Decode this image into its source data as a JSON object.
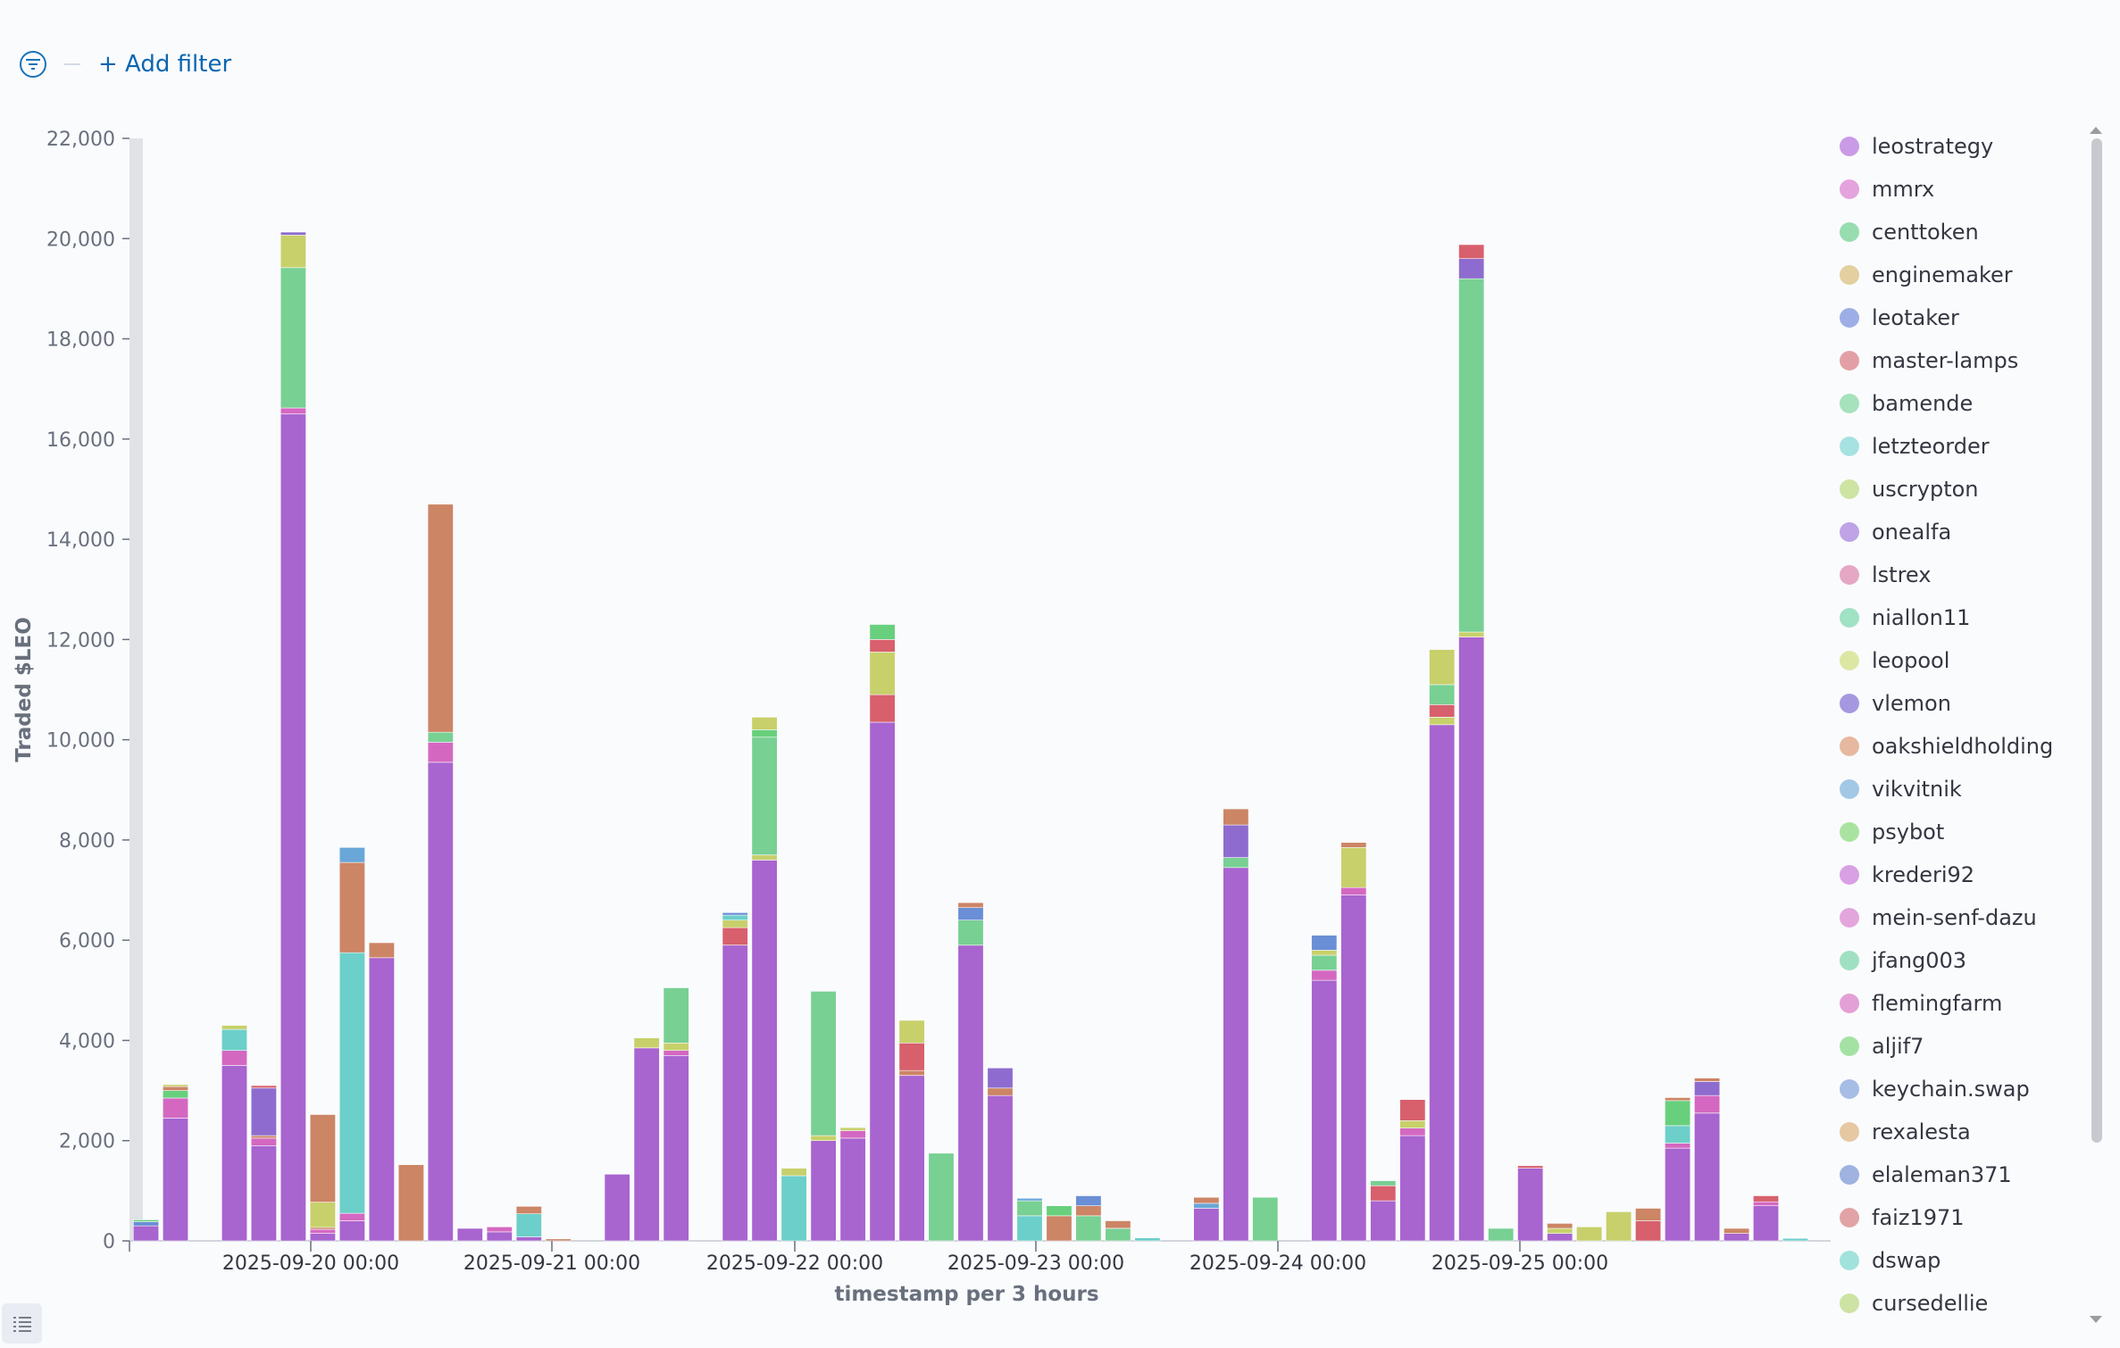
{
  "toolbar": {
    "add_filter_label": "+ Add filter"
  },
  "icons": {
    "filter": "filter-icon",
    "legend_toggle": "list-icon"
  },
  "colors": {
    "purple": "#a864cf",
    "pink": "#d468c1",
    "teal": "#6ccfc9",
    "green": "#78d093",
    "olive": "#c7d06a",
    "brown": "#cc8565",
    "red": "#d7606c",
    "blue": "#6a8fd6",
    "sky": "#69a7d8",
    "violet": "#8e6ccf",
    "grass": "#68d07c",
    "grid": "#d3dae6",
    "axis": "#69707d"
  },
  "chart_data": {
    "type": "bar",
    "stacked": true,
    "ylabel": "Traded $LEO",
    "xlabel": "timestamp per 3 hours",
    "ylim": [
      0,
      22000
    ],
    "y_ticks": [
      "0",
      "2,000",
      "4,000",
      "6,000",
      "8,000",
      "10,000",
      "12,000",
      "14,000",
      "16,000",
      "18,000",
      "20,000",
      "22,000"
    ],
    "x_tick_labels": [
      "2025-09-20 00:00",
      "2025-09-21 00:00",
      "2025-09-22 00:00",
      "2025-09-23 00:00",
      "2025-09-24 00:00",
      "2025-09-25 00:00"
    ],
    "legend_position": "right",
    "legend": [
      {
        "name": "leostrategy",
        "color": "#c99be6"
      },
      {
        "name": "mmrx",
        "color": "#e4a3dc"
      },
      {
        "name": "centtoken",
        "color": "#97ddb0"
      },
      {
        "name": "enginemaker",
        "color": "#e3cf9f"
      },
      {
        "name": "leotaker",
        "color": "#9daee6"
      },
      {
        "name": "master-lamps",
        "color": "#e2a0a6"
      },
      {
        "name": "bamende",
        "color": "#a6e2bb"
      },
      {
        "name": "letzteorder",
        "color": "#a6e2e1"
      },
      {
        "name": "uscrypton",
        "color": "#cde4a3"
      },
      {
        "name": "onealfa",
        "color": "#bfa3e6"
      },
      {
        "name": "lstrex",
        "color": "#e5a7c4"
      },
      {
        "name": "niallon11",
        "color": "#a0e2c4"
      },
      {
        "name": "leopool",
        "color": "#dde7a4"
      },
      {
        "name": "vlemon",
        "color": "#a598e0"
      },
      {
        "name": "oakshieldholding",
        "color": "#e6b8a0"
      },
      {
        "name": "vikvitnik",
        "color": "#a3c8e6"
      },
      {
        "name": "psybot",
        "color": "#a9e3a1"
      },
      {
        "name": "krederi92",
        "color": "#d9a0e3"
      },
      {
        "name": "mein-senf-dazu",
        "color": "#e3a6dc"
      },
      {
        "name": "jfang003",
        "color": "#a0e0c2"
      },
      {
        "name": "flemingfarm",
        "color": "#e3a0d6"
      },
      {
        "name": "aljif7",
        "color": "#a4e2a4"
      },
      {
        "name": "keychain.swap",
        "color": "#a6bde6"
      },
      {
        "name": "rexalesta",
        "color": "#e6c8a3"
      },
      {
        "name": "elaleman371",
        "color": "#9fb2e0"
      },
      {
        "name": "faiz1971",
        "color": "#e2a3a6"
      },
      {
        "name": "dswap",
        "color": "#a2e2dc"
      },
      {
        "name": "cursedellie",
        "color": "#cde3a3"
      }
    ],
    "bars": [
      {
        "segments": [
          [
            "purple",
            300
          ],
          [
            "blue",
            80
          ],
          [
            "grass",
            40
          ]
        ]
      },
      {
        "segments": [
          [
            "purple",
            2450
          ],
          [
            "pink",
            400
          ],
          [
            "grass",
            150
          ],
          [
            "brown",
            80
          ],
          [
            "olive",
            40
          ]
        ]
      },
      {
        "segments": []
      },
      {
        "segments": [
          [
            "purple",
            3500
          ],
          [
            "pink",
            300
          ],
          [
            "teal",
            420
          ],
          [
            "olive",
            80
          ]
        ]
      },
      {
        "segments": [
          [
            "purple",
            1900
          ],
          [
            "pink",
            150
          ],
          [
            "brown",
            50
          ],
          [
            "violet",
            950
          ],
          [
            "red",
            50
          ]
        ]
      },
      {
        "segments": [
          [
            "purple",
            16500
          ],
          [
            "pink",
            120
          ],
          [
            "green",
            2800
          ],
          [
            "olive",
            650
          ],
          [
            "violet",
            60
          ]
        ]
      },
      {
        "segments": [
          [
            "purple",
            150
          ],
          [
            "pink",
            80
          ],
          [
            "brown",
            40
          ],
          [
            "olive",
            500
          ],
          [
            "brown",
            1750
          ]
        ]
      },
      {
        "segments": [
          [
            "purple",
            400
          ],
          [
            "pink",
            150
          ],
          [
            "teal",
            5200
          ],
          [
            "brown",
            1800
          ],
          [
            "sky",
            300
          ]
        ]
      },
      {
        "segments": [
          [
            "purple",
            5650
          ],
          [
            "brown",
            300
          ]
        ]
      },
      {
        "segments": [
          [
            "brown",
            1520
          ]
        ]
      },
      {
        "segments": [
          [
            "purple",
            9550
          ],
          [
            "pink",
            400
          ],
          [
            "green",
            200
          ],
          [
            "brown",
            4550
          ]
        ]
      },
      {
        "segments": [
          [
            "purple",
            250
          ]
        ]
      },
      {
        "segments": [
          [
            "purple",
            180
          ],
          [
            "pink",
            100
          ]
        ]
      },
      {
        "segments": [
          [
            "purple",
            80
          ],
          [
            "teal",
            460
          ],
          [
            "brown",
            150
          ]
        ]
      },
      {
        "segments": [
          [
            "brown",
            40
          ]
        ]
      },
      {
        "segments": []
      },
      {
        "segments": [
          [
            "purple",
            1330
          ]
        ]
      },
      {
        "segments": [
          [
            "purple",
            3850
          ],
          [
            "olive",
            200
          ]
        ]
      },
      {
        "segments": [
          [
            "purple",
            3700
          ],
          [
            "pink",
            100
          ],
          [
            "olive",
            150
          ],
          [
            "green",
            1100
          ]
        ]
      },
      {
        "segments": []
      },
      {
        "segments": [
          [
            "purple",
            5900
          ],
          [
            "red",
            350
          ],
          [
            "olive",
            150
          ],
          [
            "teal",
            100
          ],
          [
            "blue",
            50
          ]
        ]
      },
      {
        "segments": [
          [
            "purple",
            7600
          ],
          [
            "olive",
            100
          ],
          [
            "green",
            2350
          ],
          [
            "grass",
            150
          ],
          [
            "olive",
            250
          ]
        ]
      },
      {
        "segments": [
          [
            "teal",
            1300
          ],
          [
            "olive",
            150
          ]
        ]
      },
      {
        "segments": [
          [
            "purple",
            2000
          ],
          [
            "olive",
            100
          ],
          [
            "green",
            2880
          ]
        ]
      },
      {
        "segments": [
          [
            "purple",
            2050
          ],
          [
            "pink",
            150
          ],
          [
            "olive",
            60
          ]
        ]
      },
      {
        "segments": [
          [
            "purple",
            10350
          ],
          [
            "red",
            550
          ],
          [
            "olive",
            850
          ],
          [
            "red",
            250
          ],
          [
            "grass",
            300
          ]
        ]
      },
      {
        "segments": [
          [
            "purple",
            3300
          ],
          [
            "brown",
            100
          ],
          [
            "red",
            550
          ],
          [
            "olive",
            450
          ]
        ]
      },
      {
        "segments": [
          [
            "green",
            1750
          ]
        ]
      },
      {
        "segments": [
          [
            "purple",
            5900
          ],
          [
            "green",
            500
          ],
          [
            "blue",
            250
          ],
          [
            "brown",
            100
          ]
        ]
      },
      {
        "segments": [
          [
            "purple",
            2900
          ],
          [
            "brown",
            150
          ],
          [
            "violet",
            400
          ]
        ]
      },
      {
        "segments": [
          [
            "teal",
            500
          ],
          [
            "green",
            300
          ],
          [
            "sky",
            50
          ]
        ]
      },
      {
        "segments": [
          [
            "brown",
            500
          ],
          [
            "grass",
            200
          ]
        ]
      },
      {
        "segments": [
          [
            "green",
            500
          ],
          [
            "brown",
            200
          ],
          [
            "blue",
            200
          ]
        ]
      },
      {
        "segments": [
          [
            "green",
            250
          ],
          [
            "brown",
            150
          ]
        ]
      },
      {
        "segments": [
          [
            "teal",
            60
          ]
        ]
      },
      {
        "segments": []
      },
      {
        "segments": [
          [
            "purple",
            650
          ],
          [
            "sky",
            100
          ],
          [
            "brown",
            120
          ]
        ]
      },
      {
        "segments": [
          [
            "purple",
            7450
          ],
          [
            "green",
            200
          ],
          [
            "violet",
            650
          ],
          [
            "brown",
            320
          ]
        ]
      },
      {
        "segments": [
          [
            "green",
            870
          ]
        ]
      },
      {
        "segments": []
      },
      {
        "segments": [
          [
            "purple",
            5200
          ],
          [
            "pink",
            200
          ],
          [
            "green",
            300
          ],
          [
            "olive",
            100
          ],
          [
            "blue",
            300
          ]
        ]
      },
      {
        "segments": [
          [
            "purple",
            6900
          ],
          [
            "pink",
            150
          ],
          [
            "olive",
            800
          ],
          [
            "brown",
            100
          ]
        ]
      },
      {
        "segments": [
          [
            "purple",
            800
          ],
          [
            "red",
            300
          ],
          [
            "green",
            100
          ]
        ]
      },
      {
        "segments": [
          [
            "purple",
            2100
          ],
          [
            "pink",
            150
          ],
          [
            "olive",
            150
          ],
          [
            "red",
            420
          ]
        ]
      },
      {
        "segments": [
          [
            "purple",
            10300
          ],
          [
            "olive",
            150
          ],
          [
            "red",
            250
          ],
          [
            "green",
            400
          ],
          [
            "olive",
            700
          ]
        ]
      },
      {
        "segments": [
          [
            "purple",
            12050
          ],
          [
            "olive",
            100
          ],
          [
            "green",
            7050
          ],
          [
            "violet",
            400
          ],
          [
            "red",
            280
          ]
        ]
      },
      {
        "segments": [
          [
            "green",
            250
          ]
        ]
      },
      {
        "segments": [
          [
            "purple",
            1450
          ],
          [
            "red",
            50
          ]
        ]
      },
      {
        "segments": [
          [
            "purple",
            150
          ],
          [
            "olive",
            100
          ],
          [
            "brown",
            100
          ]
        ]
      },
      {
        "segments": [
          [
            "olive",
            280
          ]
        ]
      },
      {
        "segments": [
          [
            "olive",
            580
          ]
        ]
      },
      {
        "segments": [
          [
            "red",
            400
          ],
          [
            "brown",
            250
          ]
        ]
      },
      {
        "segments": [
          [
            "purple",
            1850
          ],
          [
            "pink",
            100
          ],
          [
            "teal",
            350
          ],
          [
            "grass",
            500
          ],
          [
            "brown",
            60
          ]
        ]
      },
      {
        "segments": [
          [
            "purple",
            2550
          ],
          [
            "pink",
            350
          ],
          [
            "violet",
            280
          ],
          [
            "brown",
            70
          ]
        ]
      },
      {
        "segments": [
          [
            "purple",
            150
          ],
          [
            "brown",
            100
          ]
        ]
      },
      {
        "segments": [
          [
            "purple",
            700
          ],
          [
            "pink",
            80
          ],
          [
            "red",
            120
          ]
        ]
      },
      {
        "segments": [
          [
            "teal",
            50
          ]
        ]
      }
    ]
  }
}
